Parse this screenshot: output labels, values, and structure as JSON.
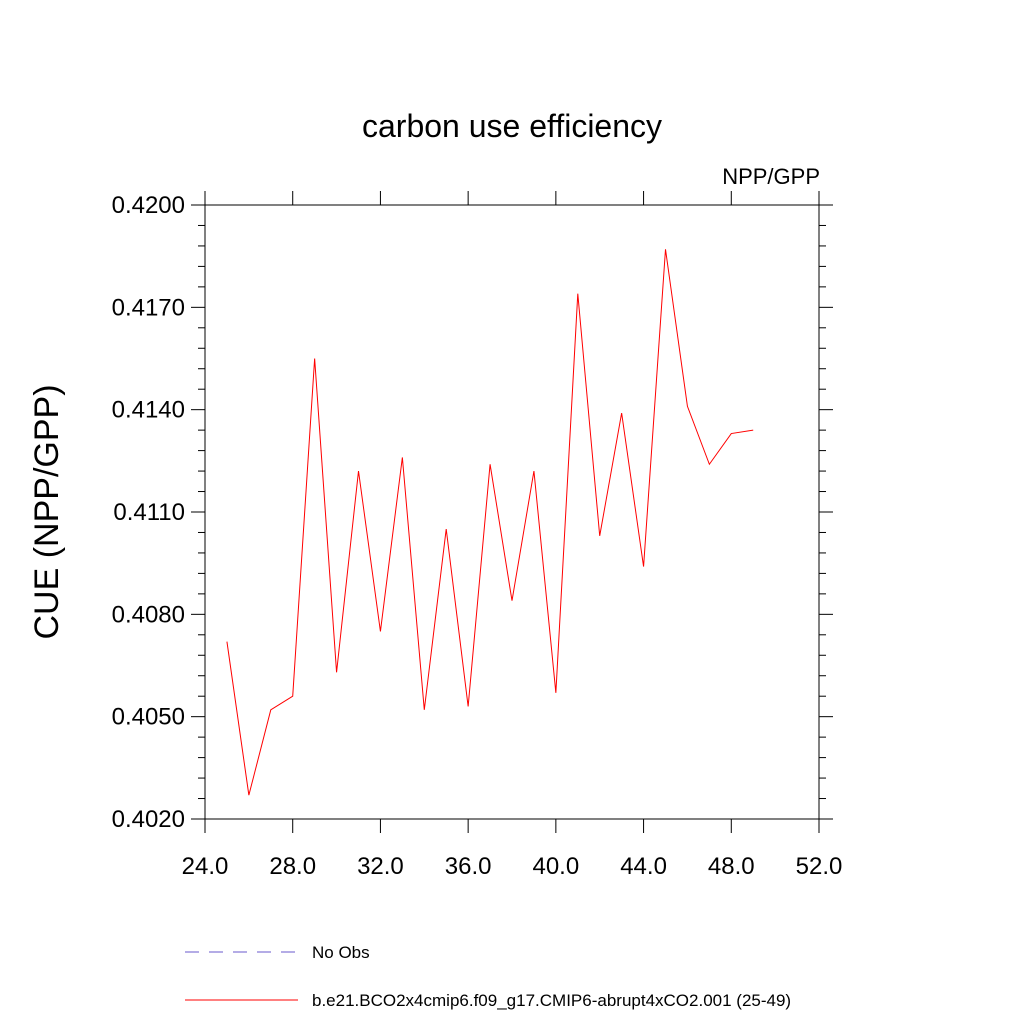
{
  "chart_data": {
    "type": "line",
    "title": "carbon use efficiency",
    "subtitle": "NPP/GPP",
    "xlabel": "",
    "ylabel": "CUE  (NPP/GPP)",
    "xlim": [
      24.0,
      52.0
    ],
    "ylim": [
      0.402,
      0.42
    ],
    "x_ticks": [
      "24.0",
      "28.0",
      "32.0",
      "36.0",
      "40.0",
      "44.0",
      "48.0",
      "52.0"
    ],
    "y_ticks": [
      "0.4020",
      "0.4050",
      "0.4080",
      "0.4110",
      "0.4140",
      "0.4170",
      "0.4200"
    ],
    "grid": false,
    "legend_position": "bottom",
    "series": [
      {
        "name": "b.e21.BCO2x4cmip6.f09_g17.CMIP6-abrupt4xCO2.001 (25-49)",
        "color": "#ff0000",
        "line_style": "solid",
        "x": [
          25,
          26,
          27,
          28,
          29,
          30,
          31,
          32,
          33,
          34,
          35,
          36,
          37,
          38,
          39,
          40,
          41,
          42,
          43,
          44,
          45,
          46,
          47,
          48,
          49
        ],
        "y": [
          0.4072,
          0.4027,
          0.4052,
          0.4056,
          0.4155,
          0.4063,
          0.4122,
          0.4075,
          0.4126,
          0.4052,
          0.4105,
          0.4053,
          0.4124,
          0.4084,
          0.4122,
          0.4057,
          0.4174,
          0.4103,
          0.4139,
          0.4094,
          0.4187,
          0.4141,
          0.4124,
          0.4133,
          0.4134
        ]
      },
      {
        "name": "No Obs",
        "color": "#6a5acd",
        "line_style": "dashed",
        "x": [],
        "y": []
      }
    ]
  }
}
